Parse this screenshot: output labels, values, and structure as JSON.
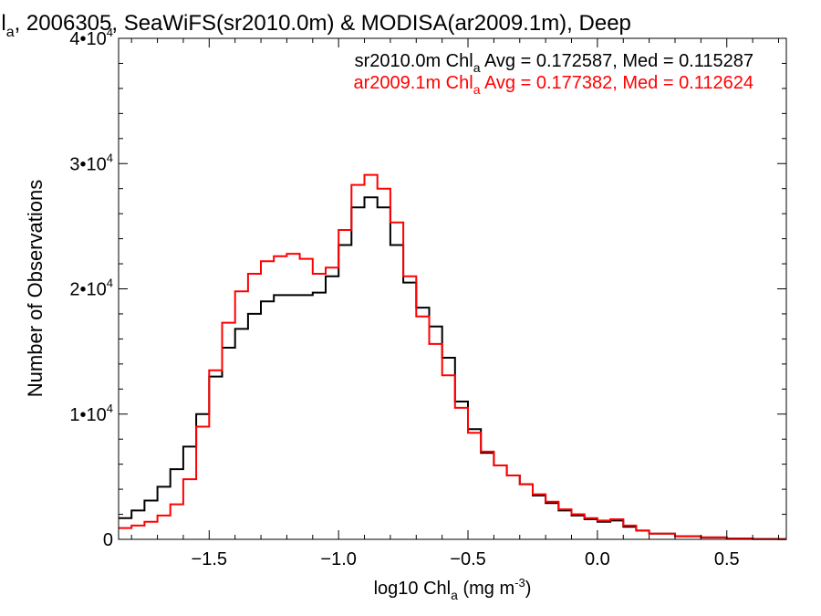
{
  "chart_data": {
    "type": "line",
    "title_parts": {
      "start": "hl",
      "sub": "a",
      "end": ", 2006305, SeaWiFS(sr2010.0m) & MODISA(ar2009.1m), Deep"
    },
    "xlabel": {
      "pre": "log10 Chl",
      "sub": "a",
      "mid": " (mg m",
      "sup": "-3",
      "post": ")"
    },
    "ylabel": "Number of Observations",
    "xlim": [
      -1.85,
      0.73
    ],
    "ylim": [
      0,
      40000
    ],
    "xticks": [
      {
        "v": -1.5,
        "label": "−1.5"
      },
      {
        "v": -1.0,
        "label": "−1.0"
      },
      {
        "v": -0.5,
        "label": "−0.5"
      },
      {
        "v": 0.0,
        "label": "0.0"
      },
      {
        "v": 0.5,
        "label": "0.5"
      }
    ],
    "yticks": [
      {
        "v": 0,
        "base": "0",
        "exp": ""
      },
      {
        "v": 10000,
        "base": "1•10",
        "exp": "4"
      },
      {
        "v": 20000,
        "base": "2•10",
        "exp": "4"
      },
      {
        "v": 30000,
        "base": "3•10",
        "exp": "4"
      },
      {
        "v": 40000,
        "base": "4•10",
        "exp": "4"
      }
    ],
    "grid": false,
    "legend_placement": "top-right",
    "x": [
      -1.85,
      -1.8,
      -1.75,
      -1.7,
      -1.65,
      -1.6,
      -1.55,
      -1.5,
      -1.45,
      -1.4,
      -1.35,
      -1.3,
      -1.25,
      -1.2,
      -1.15,
      -1.1,
      -1.05,
      -1.0,
      -0.95,
      -0.9,
      -0.85,
      -0.8,
      -0.75,
      -0.7,
      -0.65,
      -0.6,
      -0.55,
      -0.5,
      -0.45,
      -0.4,
      -0.35,
      -0.3,
      -0.25,
      -0.2,
      -0.15,
      -0.1,
      -0.05,
      0.0,
      0.05,
      0.1,
      0.15,
      0.2,
      0.3,
      0.4,
      0.5,
      0.6,
      0.7
    ],
    "series": [
      {
        "name_parts": {
          "pre": "sr2010.0m Chl",
          "sub": "a",
          "post": " Avg = 0.172587, Med = 0.115287"
        },
        "color": "#000000",
        "values": [
          1700,
          2300,
          3100,
          4200,
          5600,
          7400,
          10000,
          13000,
          15300,
          16800,
          18000,
          19000,
          19500,
          19500,
          19500,
          19700,
          21000,
          23500,
          26500,
          27300,
          26500,
          23500,
          20500,
          18500,
          17000,
          14500,
          11000,
          8800,
          6900,
          5900,
          5100,
          4400,
          3500,
          2900,
          2300,
          1900,
          1600,
          1400,
          1500,
          1000,
          700,
          450,
          250,
          150,
          70,
          30,
          15
        ]
      },
      {
        "name_parts": {
          "pre": "ar2009.1m Chl",
          "sub": "a",
          "post": " Avg = 0.177382, Med = 0.112624"
        },
        "color": "#ff0000",
        "values": [
          900,
          1100,
          1400,
          1900,
          2800,
          4800,
          9000,
          13500,
          17300,
          19800,
          21200,
          22200,
          22600,
          22800,
          22400,
          21200,
          21700,
          24700,
          28300,
          29100,
          28000,
          25300,
          21000,
          17800,
          15600,
          13100,
          10500,
          8500,
          7000,
          5900,
          5100,
          4400,
          3600,
          3000,
          2400,
          2000,
          1700,
          1500,
          1600,
          1100,
          700,
          450,
          250,
          150,
          70,
          30,
          15
        ]
      }
    ]
  }
}
